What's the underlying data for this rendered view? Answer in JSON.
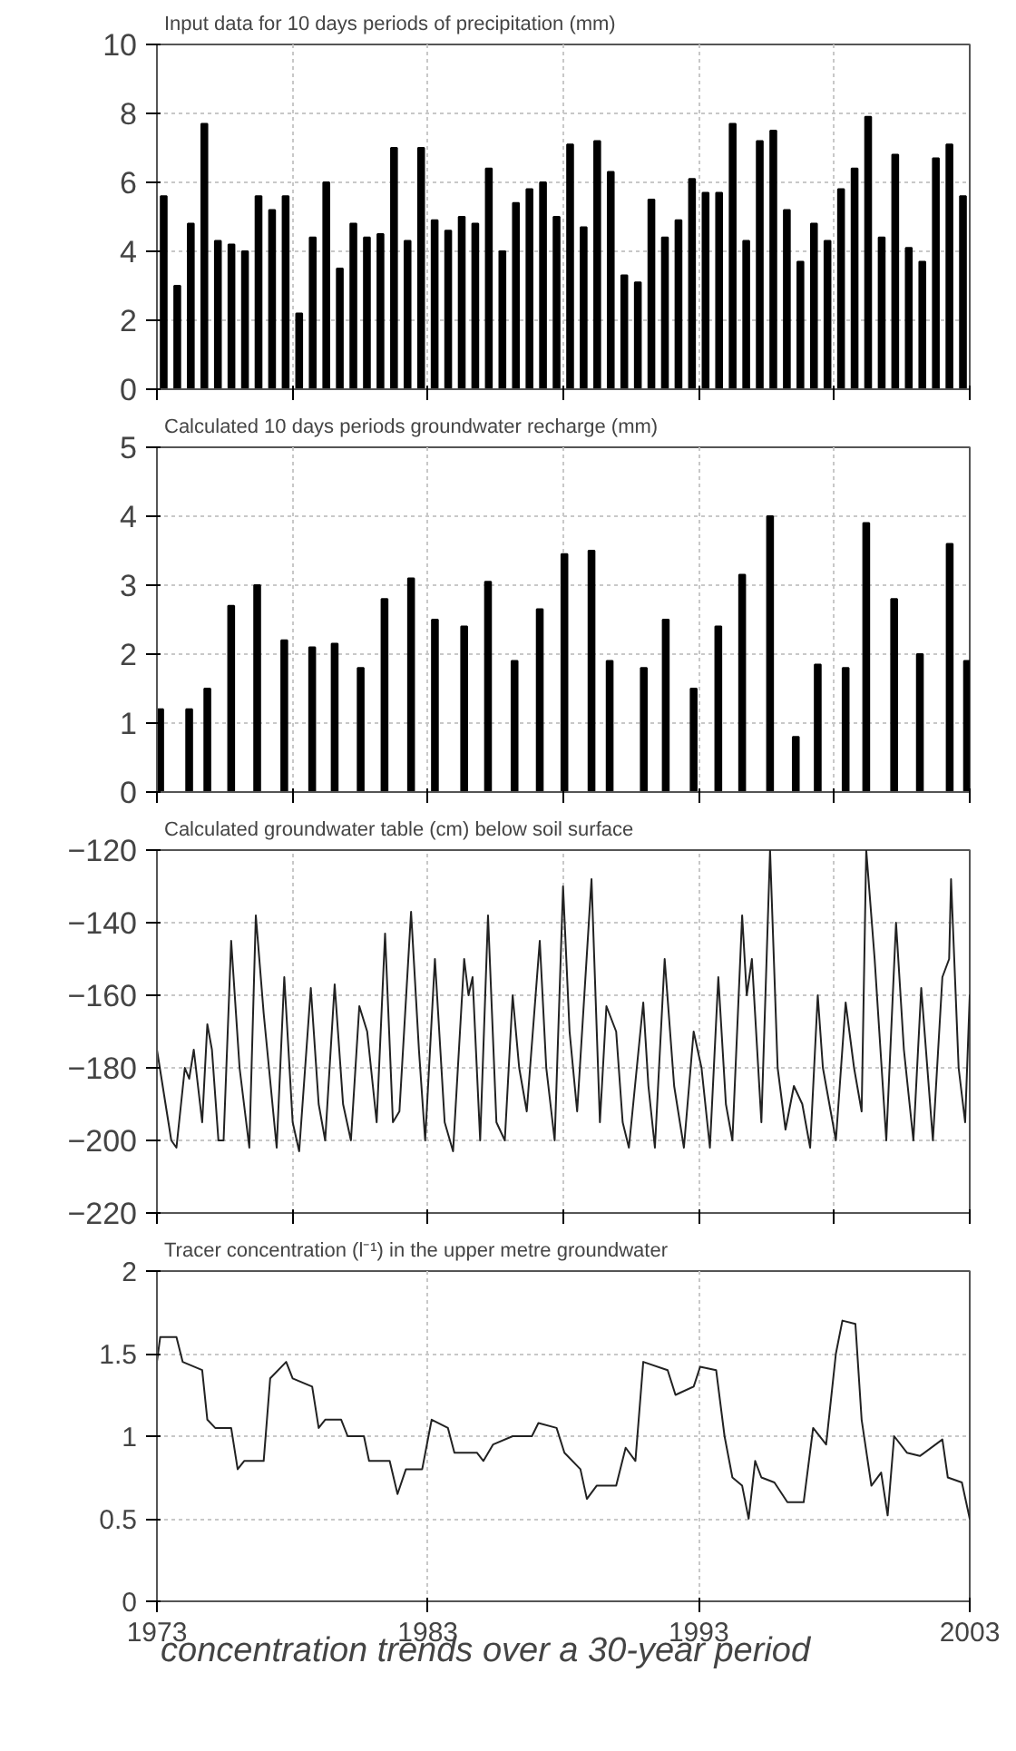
{
  "chart_data": [
    {
      "type": "bar",
      "title": "Input data for 10 days periods of precipitation (mm)",
      "xlim": [
        1973,
        2003
      ],
      "ylim": [
        0,
        10
      ],
      "xticks": [
        {
          "value": 1973,
          "label": null
        },
        {
          "value": 1978,
          "label": null
        },
        {
          "value": 1983,
          "label": null
        },
        {
          "value": 1988,
          "label": null
        },
        {
          "value": 1993,
          "label": null
        },
        {
          "value": 1998,
          "label": null
        },
        {
          "value": 2003,
          "label": null
        }
      ],
      "yticks": [
        0,
        2,
        4,
        6,
        8,
        10
      ],
      "tick_labels": "y",
      "grid": true,
      "series": [
        {
          "color": "#000000",
          "x": [
            1973.25,
            1973.75,
            1974.25,
            1974.75,
            1975.25,
            1975.75,
            1976.25,
            1976.75,
            1977.25,
            1977.75,
            1978.25,
            1978.75,
            1979.25,
            1979.75,
            1980.25,
            1980.75,
            1981.25,
            1981.75,
            1982.25,
            1982.75,
            1983.25,
            1983.75,
            1984.25,
            1984.75,
            1985.25,
            1985.75,
            1986.25,
            1986.75,
            1987.25,
            1987.75,
            1988.25,
            1988.75,
            1989.25,
            1989.75,
            1990.25,
            1990.75,
            1991.25,
            1991.75,
            1992.25,
            1992.75,
            1993.25,
            1993.75,
            1994.25,
            1994.75,
            1995.25,
            1995.75,
            1996.25,
            1996.75,
            1997.25,
            1997.75,
            1998.25,
            1998.75,
            1999.25,
            1999.75,
            2000.25,
            2000.75,
            2001.25,
            2001.75,
            2002.25,
            2002.75
          ],
          "values": [
            5.6,
            3.0,
            4.8,
            7.7,
            4.3,
            4.2,
            4.0,
            5.6,
            5.2,
            5.6,
            2.2,
            4.4,
            6.0,
            3.5,
            4.8,
            4.4,
            4.5,
            7.0,
            4.3,
            7.0,
            4.9,
            4.6,
            5.0,
            4.8,
            6.4,
            4.0,
            5.4,
            5.8,
            6.0,
            5.0,
            7.1,
            4.7,
            7.2,
            6.3,
            3.3,
            3.1,
            5.5,
            4.4,
            4.9,
            6.1,
            5.7,
            5.7,
            7.7,
            4.3,
            7.2,
            7.5,
            5.2,
            3.7,
            4.8,
            4.3,
            5.8,
            6.4,
            7.9,
            4.4,
            6.8,
            4.1,
            3.7,
            6.7,
            7.1,
            5.6
          ]
        }
      ]
    },
    {
      "type": "bar",
      "title": "Calculated 10 days periods groundwater recharge (mm)",
      "xlim": [
        1973,
        2003
      ],
      "ylim": [
        0,
        5
      ],
      "xticks": [
        {
          "value": 1973,
          "label": null
        },
        {
          "value": 1978,
          "label": null
        },
        {
          "value": 1983,
          "label": null
        },
        {
          "value": 1988,
          "label": null
        },
        {
          "value": 1993,
          "label": null
        },
        {
          "value": 1998,
          "label": null
        },
        {
          "value": 2003,
          "label": null
        }
      ],
      "yticks": [
        0,
        1,
        2,
        3,
        4,
        5
      ],
      "tick_labels": "y",
      "grid": true,
      "series": [
        {
          "color": "#000000",
          "x": [
            1973.12,
            1974.19,
            1974.86,
            1975.74,
            1976.7,
            1977.7,
            1978.73,
            1979.56,
            1980.52,
            1981.4,
            1982.38,
            1983.26,
            1984.34,
            1985.22,
            1986.2,
            1987.13,
            1988.04,
            1989.04,
            1989.71,
            1990.97,
            1991.78,
            1992.81,
            1993.72,
            1994.6,
            1995.63,
            1996.58,
            1997.39,
            1998.42,
            1999.18,
            2000.21,
            2001.16,
            2002.26,
            2002.9
          ],
          "values": [
            1.2,
            1.2,
            1.5,
            2.7,
            3.0,
            2.2,
            2.1,
            2.15,
            1.8,
            2.8,
            3.1,
            2.5,
            2.4,
            3.05,
            1.9,
            2.65,
            3.45,
            3.5,
            1.9,
            1.8,
            2.5,
            1.5,
            2.4,
            3.15,
            4.0,
            0.8,
            1.85,
            1.8,
            3.9,
            2.8,
            2.0,
            3.6,
            1.9
          ]
        }
      ]
    },
    {
      "type": "line",
      "title": "Calculated groundwater table (cm) below soil surface",
      "xlim": [
        1973,
        2003
      ],
      "ylim": [
        -220,
        -120
      ],
      "xticks": [
        {
          "value": 1973,
          "label": null
        },
        {
          "value": 1978,
          "label": null
        },
        {
          "value": 1983,
          "label": null
        },
        {
          "value": 1988,
          "label": null
        },
        {
          "value": 1993,
          "label": null
        },
        {
          "value": 1998,
          "label": null
        },
        {
          "value": 2003,
          "label": null
        }
      ],
      "yticks": [
        -220,
        -200,
        -180,
        -160,
        -140,
        -120
      ],
      "tick_labels": "y",
      "grid": true,
      "line_style": "solid",
      "series": [
        {
          "color": "#222222",
          "x": [
            1973.0,
            1973.53,
            1973.72,
            1974.03,
            1974.19,
            1974.36,
            1974.67,
            1974.86,
            1975.03,
            1975.27,
            1975.46,
            1975.74,
            1976.05,
            1976.41,
            1976.65,
            1976.94,
            1977.42,
            1977.7,
            1978.01,
            1978.25,
            1978.68,
            1978.97,
            1979.21,
            1979.56,
            1979.87,
            1980.16,
            1980.47,
            1980.76,
            1981.11,
            1981.42,
            1981.71,
            1981.95,
            1982.38,
            1982.67,
            1982.9,
            1983.26,
            1983.62,
            1983.93,
            1984.34,
            1984.5,
            1984.65,
            1984.93,
            1985.22,
            1985.53,
            1985.84,
            1986.13,
            1986.37,
            1986.65,
            1987.13,
            1987.37,
            1987.68,
            1987.99,
            1988.23,
            1988.51,
            1989.04,
            1989.35,
            1989.59,
            1989.95,
            1990.19,
            1990.42,
            1990.95,
            1991.14,
            1991.38,
            1991.74,
            1992.09,
            1992.45,
            1992.81,
            1993.1,
            1993.41,
            1993.72,
            1994.0,
            1994.24,
            1994.6,
            1994.77,
            1994.96,
            1995.31,
            1995.63,
            1995.91,
            1996.2,
            1996.51,
            1996.82,
            1997.11,
            1997.39,
            1997.58,
            1998.06,
            1998.42,
            1998.73,
            1999.01,
            1999.18,
            1999.49,
            1999.92,
            2000.28,
            2000.57,
            2000.92,
            2001.21,
            2001.64,
            2001.99,
            2002.24,
            2002.31,
            2002.59,
            2002.83,
            2003.0
          ],
          "values": [
            -175,
            -200,
            -202,
            -180,
            -183,
            -175,
            -195,
            -168,
            -175,
            -200,
            -200,
            -145,
            -180,
            -202,
            -138,
            -165,
            -202,
            -155,
            -195,
            -203,
            -158,
            -190,
            -200,
            -157,
            -190,
            -200,
            -163,
            -170,
            -195,
            -143,
            -195,
            -192,
            -137,
            -175,
            -200,
            -150,
            -195,
            -203,
            -150,
            -160,
            -155,
            -200,
            -138,
            -195,
            -200,
            -160,
            -180,
            -192,
            -145,
            -180,
            -200,
            -130,
            -170,
            -192,
            -128,
            -195,
            -163,
            -170,
            -195,
            -202,
            -162,
            -185,
            -202,
            -150,
            -185,
            -202,
            -170,
            -180,
            -202,
            -155,
            -190,
            -200,
            -138,
            -160,
            -150,
            -195,
            -120,
            -180,
            -197,
            -185,
            -190,
            -202,
            -160,
            -180,
            -200,
            -162,
            -180,
            -192,
            -120,
            -150,
            -200,
            -140,
            -175,
            -200,
            -158,
            -200,
            -155,
            -150,
            -128,
            -180,
            -195,
            -160
          ]
        }
      ]
    },
    {
      "type": "line",
      "title": "Tracer concentration (l⁻¹) in the upper metre groundwater",
      "xlim": [
        1973,
        2003
      ],
      "ylim": [
        0,
        2
      ],
      "xticks": [
        1973,
        1983,
        1993,
        2003
      ],
      "yticks": [
        0,
        0.5,
        1,
        1.5,
        2
      ],
      "grid": true,
      "line_style": "solid",
      "annotations": [
        "concentration trends over a 30-year period"
      ],
      "series": [
        {
          "color": "#222222",
          "x": [
            1973.0,
            1973.12,
            1973.72,
            1973.95,
            1974.67,
            1974.86,
            1975.15,
            1975.74,
            1975.98,
            1976.22,
            1976.94,
            1977.18,
            1977.77,
            1978.01,
            1978.73,
            1978.97,
            1979.21,
            1979.8,
            1980.04,
            1980.64,
            1980.83,
            1981.59,
            1981.88,
            1982.19,
            1982.79,
            1983.14,
            1983.74,
            1983.98,
            1984.81,
            1985.05,
            1985.41,
            1986.13,
            1986.84,
            1987.08,
            1987.75,
            1988.04,
            1988.63,
            1988.87,
            1989.23,
            1989.95,
            1990.3,
            1990.66,
            1990.95,
            1991.85,
            1992.14,
            1992.81,
            1993.05,
            1993.64,
            1993.95,
            1994.24,
            1994.6,
            1994.84,
            1995.08,
            1995.31,
            1995.79,
            1996.27,
            1996.87,
            1997.22,
            1997.7,
            1998.06,
            1998.3,
            1998.78,
            1999.01,
            1999.37,
            1999.73,
            1999.97,
            2000.21,
            2000.68,
            2001.16,
            2001.99,
            2002.19,
            2002.71,
            2003.0
          ],
          "values": [
            1.45,
            1.6,
            1.6,
            1.45,
            1.4,
            1.1,
            1.05,
            1.05,
            0.8,
            0.85,
            0.85,
            1.35,
            1.45,
            1.35,
            1.3,
            1.05,
            1.1,
            1.1,
            1.0,
            1.0,
            0.85,
            0.85,
            0.65,
            0.8,
            0.8,
            1.1,
            1.05,
            0.9,
            0.9,
            0.85,
            0.95,
            1.0,
            1.0,
            1.08,
            1.05,
            0.9,
            0.8,
            0.62,
            0.7,
            0.7,
            0.93,
            0.85,
            1.45,
            1.4,
            1.25,
            1.3,
            1.42,
            1.4,
            1.0,
            0.75,
            0.7,
            0.5,
            0.85,
            0.75,
            0.72,
            0.6,
            0.6,
            1.05,
            0.95,
            1.5,
            1.7,
            1.68,
            1.1,
            0.7,
            0.78,
            0.52,
            1.0,
            0.9,
            0.88,
            0.98,
            0.75,
            0.72,
            0.5
          ]
        }
      ]
    }
  ]
}
